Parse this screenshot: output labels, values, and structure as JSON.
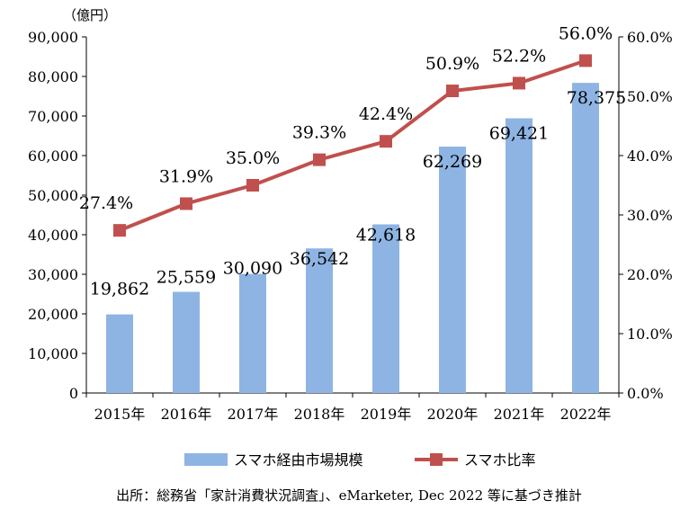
{
  "chart_data": {
    "type": "bar",
    "categories": [
      "2015年",
      "2016年",
      "2017年",
      "2018年",
      "2019年",
      "2020年",
      "2021年",
      "2022年"
    ],
    "series": [
      {
        "name": "スマホ経由市場規模",
        "type": "bar",
        "axis": "left",
        "values": [
          19862,
          25559,
          30090,
          36542,
          42618,
          62269,
          69421,
          78375
        ],
        "labels": [
          "19,862",
          "25,559",
          "30,090",
          "36,542",
          "42,618",
          "62,269",
          "69,421",
          "78,375"
        ],
        "color": "#8eb4e3"
      },
      {
        "name": "スマホ比率",
        "type": "line",
        "axis": "right",
        "values": [
          27.4,
          31.9,
          35.0,
          39.3,
          42.4,
          50.9,
          52.2,
          56.0
        ],
        "labels": [
          "27.4%",
          "31.9%",
          "35.0%",
          "39.3%",
          "42.4%",
          "50.9%",
          "52.2%",
          "56.0%"
        ],
        "color": "#c0504d"
      }
    ],
    "y_left": {
      "unit": "（億円）",
      "ylim": [
        0,
        90000
      ],
      "ticks": [
        "0",
        "10,000",
        "20,000",
        "30,000",
        "40,000",
        "50,000",
        "60,000",
        "70,000",
        "80,000",
        "90,000"
      ]
    },
    "y_right": {
      "ylim": [
        0,
        60
      ],
      "ticks": [
        "0.0%",
        "10.0%",
        "20.0%",
        "30.0%",
        "40.0%",
        "50.0%",
        "60.0%"
      ]
    },
    "grid": false,
    "legend": "bottom"
  },
  "source_note": "出所：総務省「家計消費状況調査」、eMarketer, Dec 2022 等に基づき推計"
}
